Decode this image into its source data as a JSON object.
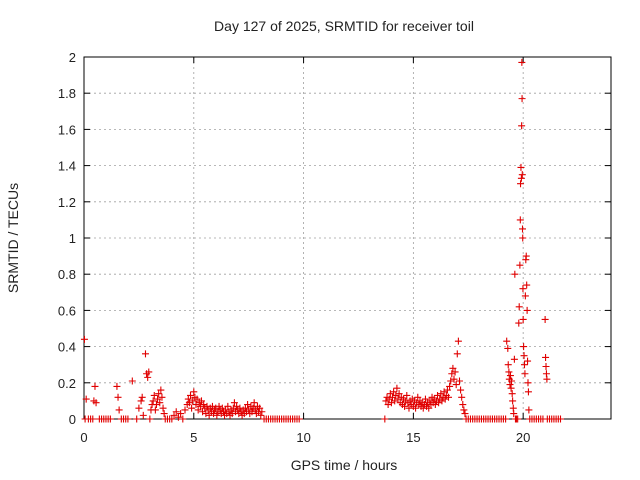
{
  "chart_data": {
    "type": "scatter",
    "title": "Day 127 of 2025, SRMTID for receiver toil",
    "xlabel": "GPS time / hours",
    "ylabel": "SRMTID / TECUs",
    "xlim": [
      0,
      24
    ],
    "ylim": [
      0,
      2
    ],
    "grid": true,
    "marker": "+",
    "color": "#e00000",
    "x_ticks": [
      0,
      5,
      10,
      15,
      20
    ],
    "x_tick_labels": [
      "0",
      "5",
      "10",
      "15",
      "20"
    ],
    "y_ticks": [
      0,
      0.2,
      0.4,
      0.6,
      0.8,
      1,
      1.2,
      1.4,
      1.6,
      1.8,
      2
    ],
    "y_tick_labels": [
      "0",
      "0.2",
      "0.4",
      "0.6",
      "0.8",
      "1",
      "1.2",
      "1.4",
      "1.6",
      "1.8",
      "2"
    ],
    "series": [
      {
        "name": "SRMTID",
        "points": [
          [
            0.02,
            0.44
          ],
          [
            0.05,
            0.0
          ],
          [
            0.1,
            0.11
          ],
          [
            0.2,
            0.0
          ],
          [
            0.3,
            0.0
          ],
          [
            0.4,
            0.0
          ],
          [
            0.45,
            0.1
          ],
          [
            0.5,
            0.18
          ],
          [
            0.55,
            0.09
          ],
          [
            0.7,
            0.0
          ],
          [
            0.8,
            0.0
          ],
          [
            0.9,
            0.0
          ],
          [
            1.0,
            0.0
          ],
          [
            1.1,
            0.0
          ],
          [
            1.2,
            0.0
          ],
          [
            1.5,
            0.18
          ],
          [
            1.55,
            0.12
          ],
          [
            1.6,
            0.05
          ],
          [
            1.7,
            0.0
          ],
          [
            1.8,
            0.0
          ],
          [
            1.9,
            0.0
          ],
          [
            2.0,
            0.0
          ],
          [
            2.2,
            0.21
          ],
          [
            2.4,
            0.0
          ],
          [
            2.5,
            0.06
          ],
          [
            2.6,
            0.1
          ],
          [
            2.65,
            0.12
          ],
          [
            2.7,
            0.02
          ],
          [
            2.8,
            0.36
          ],
          [
            2.85,
            0.25
          ],
          [
            2.9,
            0.23
          ],
          [
            2.95,
            0.26
          ],
          [
            3.0,
            0.0
          ],
          [
            3.05,
            0.05
          ],
          [
            3.1,
            0.08
          ],
          [
            3.15,
            0.1
          ],
          [
            3.2,
            0.13
          ],
          [
            3.25,
            0.05
          ],
          [
            3.3,
            0.08
          ],
          [
            3.35,
            0.11
          ],
          [
            3.4,
            0.14
          ],
          [
            3.45,
            0.09
          ],
          [
            3.5,
            0.16
          ],
          [
            3.55,
            0.12
          ],
          [
            3.6,
            0.06
          ],
          [
            3.65,
            0.03
          ],
          [
            3.7,
            0.0
          ],
          [
            3.8,
            0.0
          ],
          [
            3.9,
            0.0
          ],
          [
            4.0,
            0.0
          ],
          [
            4.1,
            0.02
          ],
          [
            4.2,
            0.04
          ],
          [
            4.3,
            0.01
          ],
          [
            4.4,
            0.03
          ],
          [
            4.5,
            0.0
          ],
          [
            4.6,
            0.05
          ],
          [
            4.7,
            0.08
          ],
          [
            4.75,
            0.11
          ],
          [
            4.8,
            0.09
          ],
          [
            4.85,
            0.13
          ],
          [
            4.9,
            0.06
          ],
          [
            4.95,
            0.1
          ],
          [
            5.0,
            0.15
          ],
          [
            5.05,
            0.12
          ],
          [
            5.1,
            0.08
          ],
          [
            5.15,
            0.11
          ],
          [
            5.2,
            0.05
          ],
          [
            5.25,
            0.09
          ],
          [
            5.3,
            0.07
          ],
          [
            5.35,
            0.1
          ],
          [
            5.4,
            0.04
          ],
          [
            5.45,
            0.08
          ],
          [
            5.5,
            0.06
          ],
          [
            5.55,
            0.03
          ],
          [
            5.6,
            0.07
          ],
          [
            5.65,
            0.05
          ],
          [
            5.7,
            0.02
          ],
          [
            5.75,
            0.06
          ],
          [
            5.8,
            0.04
          ],
          [
            5.85,
            0.07
          ],
          [
            5.9,
            0.03
          ],
          [
            5.95,
            0.05
          ],
          [
            6.0,
            0.06
          ],
          [
            6.05,
            0.02
          ],
          [
            6.1,
            0.04
          ],
          [
            6.15,
            0.07
          ],
          [
            6.2,
            0.05
          ],
          [
            6.25,
            0.03
          ],
          [
            6.3,
            0.06
          ],
          [
            6.35,
            0.04
          ],
          [
            6.4,
            0.02
          ],
          [
            6.45,
            0.05
          ],
          [
            6.5,
            0.03
          ],
          [
            6.55,
            0.07
          ],
          [
            6.6,
            0.04
          ],
          [
            6.65,
            0.02
          ],
          [
            6.7,
            0.05
          ],
          [
            6.75,
            0.03
          ],
          [
            6.8,
            0.06
          ],
          [
            6.85,
            0.09
          ],
          [
            6.9,
            0.04
          ],
          [
            6.95,
            0.07
          ],
          [
            7.0,
            0.05
          ],
          [
            7.05,
            0.03
          ],
          [
            7.1,
            0.06
          ],
          [
            7.15,
            0.04
          ],
          [
            7.2,
            0.02
          ],
          [
            7.25,
            0.05
          ],
          [
            7.3,
            0.03
          ],
          [
            7.35,
            0.06
          ],
          [
            7.4,
            0.04
          ],
          [
            7.45,
            0.08
          ],
          [
            7.5,
            0.05
          ],
          [
            7.55,
            0.03
          ],
          [
            7.6,
            0.07
          ],
          [
            7.65,
            0.04
          ],
          [
            7.7,
            0.06
          ],
          [
            7.75,
            0.09
          ],
          [
            7.8,
            0.05
          ],
          [
            7.85,
            0.03
          ],
          [
            7.9,
            0.07
          ],
          [
            7.95,
            0.04
          ],
          [
            8.0,
            0.06
          ],
          [
            8.05,
            0.02
          ],
          [
            8.1,
            0.04
          ],
          [
            8.2,
            0.0
          ],
          [
            8.3,
            0.0
          ],
          [
            8.4,
            0.0
          ],
          [
            8.5,
            0.0
          ],
          [
            8.6,
            0.0
          ],
          [
            8.7,
            0.0
          ],
          [
            8.8,
            0.0
          ],
          [
            8.9,
            0.0
          ],
          [
            9.0,
            0.0
          ],
          [
            9.1,
            0.0
          ],
          [
            9.2,
            0.0
          ],
          [
            9.3,
            0.0
          ],
          [
            9.4,
            0.0
          ],
          [
            9.5,
            0.0
          ],
          [
            9.6,
            0.0
          ],
          [
            9.7,
            0.0
          ],
          [
            9.8,
            0.0
          ],
          [
            13.7,
            0.0
          ],
          [
            13.75,
            0.1
          ],
          [
            13.8,
            0.12
          ],
          [
            13.85,
            0.08
          ],
          [
            13.9,
            0.11
          ],
          [
            13.95,
            0.14
          ],
          [
            14.0,
            0.09
          ],
          [
            14.05,
            0.12
          ],
          [
            14.1,
            0.15
          ],
          [
            14.15,
            0.1
          ],
          [
            14.2,
            0.13
          ],
          [
            14.25,
            0.17
          ],
          [
            14.3,
            0.11
          ],
          [
            14.35,
            0.14
          ],
          [
            14.4,
            0.09
          ],
          [
            14.45,
            0.12
          ],
          [
            14.5,
            0.08
          ],
          [
            14.55,
            0.11
          ],
          [
            14.6,
            0.07
          ],
          [
            14.65,
            0.1
          ],
          [
            14.7,
            0.13
          ],
          [
            14.75,
            0.09
          ],
          [
            14.8,
            0.06
          ],
          [
            14.85,
            0.1
          ],
          [
            14.9,
            0.08
          ],
          [
            14.95,
            0.11
          ],
          [
            15.0,
            0.07
          ],
          [
            15.05,
            0.1
          ],
          [
            15.1,
            0.06
          ],
          [
            15.15,
            0.09
          ],
          [
            15.2,
            0.12
          ],
          [
            15.25,
            0.08
          ],
          [
            15.3,
            0.1
          ],
          [
            15.35,
            0.07
          ],
          [
            15.4,
            0.09
          ],
          [
            15.45,
            0.06
          ],
          [
            15.5,
            0.08
          ],
          [
            15.55,
            0.11
          ],
          [
            15.6,
            0.07
          ],
          [
            15.65,
            0.09
          ],
          [
            15.7,
            0.06
          ],
          [
            15.75,
            0.1
          ],
          [
            15.8,
            0.08
          ],
          [
            15.85,
            0.12
          ],
          [
            15.9,
            0.09
          ],
          [
            15.95,
            0.11
          ],
          [
            16.0,
            0.08
          ],
          [
            16.05,
            0.1
          ],
          [
            16.1,
            0.13
          ],
          [
            16.15,
            0.09
          ],
          [
            16.2,
            0.11
          ],
          [
            16.25,
            0.14
          ],
          [
            16.3,
            0.1
          ],
          [
            16.35,
            0.12
          ],
          [
            16.4,
            0.15
          ],
          [
            16.45,
            0.11
          ],
          [
            16.5,
            0.13
          ],
          [
            16.55,
            0.16
          ],
          [
            16.6,
            0.12
          ],
          [
            16.65,
            0.18
          ],
          [
            16.7,
            0.21
          ],
          [
            16.75,
            0.25
          ],
          [
            16.8,
            0.28
          ],
          [
            16.85,
            0.22
          ],
          [
            16.9,
            0.26
          ],
          [
            16.95,
            0.19
          ],
          [
            17.0,
            0.36
          ],
          [
            17.05,
            0.43
          ],
          [
            17.1,
            0.21
          ],
          [
            17.15,
            0.16
          ],
          [
            17.2,
            0.12
          ],
          [
            17.25,
            0.08
          ],
          [
            17.3,
            0.05
          ],
          [
            17.35,
            0.03
          ],
          [
            17.4,
            0.0
          ],
          [
            17.5,
            0.0
          ],
          [
            17.6,
            0.0
          ],
          [
            17.7,
            0.0
          ],
          [
            17.8,
            0.0
          ],
          [
            17.9,
            0.0
          ],
          [
            18.0,
            0.0
          ],
          [
            18.1,
            0.0
          ],
          [
            18.2,
            0.0
          ],
          [
            18.3,
            0.0
          ],
          [
            18.4,
            0.0
          ],
          [
            18.5,
            0.0
          ],
          [
            18.6,
            0.0
          ],
          [
            18.7,
            0.0
          ],
          [
            18.8,
            0.0
          ],
          [
            18.9,
            0.0
          ],
          [
            19.0,
            0.0
          ],
          [
            19.1,
            0.0
          ],
          [
            19.2,
            0.0
          ],
          [
            19.25,
            0.43
          ],
          [
            19.3,
            0.39
          ],
          [
            19.32,
            0.3
          ],
          [
            19.35,
            0.26
          ],
          [
            19.37,
            0.22
          ],
          [
            19.4,
            0.19
          ],
          [
            19.42,
            0.24
          ],
          [
            19.45,
            0.17
          ],
          [
            19.47,
            0.21
          ],
          [
            19.5,
            0.14
          ],
          [
            19.52,
            0.1
          ],
          [
            19.55,
            0.06
          ],
          [
            19.57,
            0.03
          ],
          [
            19.6,
            0.33
          ],
          [
            19.62,
            0.8
          ],
          [
            19.65,
            0.0
          ],
          [
            19.7,
            0.0
          ],
          [
            19.75,
            0.0
          ],
          [
            19.8,
            0.53
          ],
          [
            19.82,
            0.62
          ],
          [
            19.85,
            0.85
          ],
          [
            19.87,
            1.1
          ],
          [
            19.88,
            1.3
          ],
          [
            19.9,
            1.39
          ],
          [
            19.92,
            1.33
          ],
          [
            19.93,
            1.62
          ],
          [
            19.94,
            1.97
          ],
          [
            19.95,
            1.77
          ],
          [
            19.96,
            1.35
          ],
          [
            19.97,
            1.05
          ],
          [
            19.98,
            1.0
          ],
          [
            19.99,
            0.72
          ],
          [
            20.0,
            0.55
          ],
          [
            20.02,
            0.4
          ],
          [
            20.04,
            0.35
          ],
          [
            20.06,
            0.3
          ],
          [
            20.08,
            0.25
          ],
          [
            20.1,
            0.68
          ],
          [
            20.12,
            0.88
          ],
          [
            20.14,
            0.9
          ],
          [
            20.16,
            0.74
          ],
          [
            20.18,
            0.6
          ],
          [
            20.2,
            0.32
          ],
          [
            20.22,
            0.2
          ],
          [
            20.24,
            0.15
          ],
          [
            20.26,
            0.05
          ],
          [
            20.3,
            0.0
          ],
          [
            20.4,
            0.0
          ],
          [
            20.5,
            0.0
          ],
          [
            20.6,
            0.0
          ],
          [
            20.7,
            0.0
          ],
          [
            20.8,
            0.0
          ],
          [
            20.9,
            0.0
          ],
          [
            21.0,
            0.55
          ],
          [
            21.02,
            0.34
          ],
          [
            21.04,
            0.29
          ],
          [
            21.06,
            0.25
          ],
          [
            21.08,
            0.22
          ],
          [
            21.1,
            0.0
          ],
          [
            21.2,
            0.0
          ],
          [
            21.3,
            0.0
          ],
          [
            21.4,
            0.0
          ],
          [
            21.5,
            0.0
          ],
          [
            21.6,
            0.0
          ],
          [
            21.7,
            0.0
          ]
        ]
      }
    ]
  }
}
